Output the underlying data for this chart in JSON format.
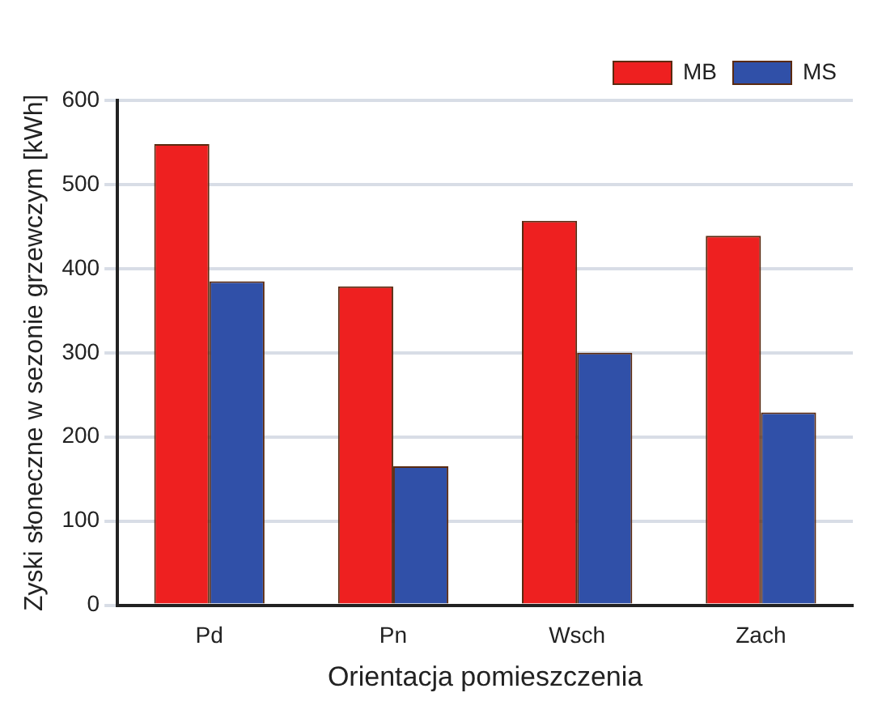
{
  "chart_data": {
    "type": "bar",
    "xlabel": "Orientacja pomieszczenia",
    "ylabel": "Zyski słoneczne w sezonie grzewczym [kWh]",
    "categories": [
      "Pd",
      "Pn",
      "Wsch",
      "Zach"
    ],
    "series": [
      {
        "name": "MB",
        "color": "#ee2020",
        "values": [
          548,
          379,
          457,
          439
        ]
      },
      {
        "name": "MS",
        "color": "#3050a8",
        "values": [
          385,
          165,
          300,
          229
        ]
      }
    ],
    "ylim": [
      0,
      600
    ],
    "yticks": [
      0,
      100,
      200,
      300,
      400,
      500,
      600
    ],
    "grid": "y",
    "legend": "top right"
  }
}
